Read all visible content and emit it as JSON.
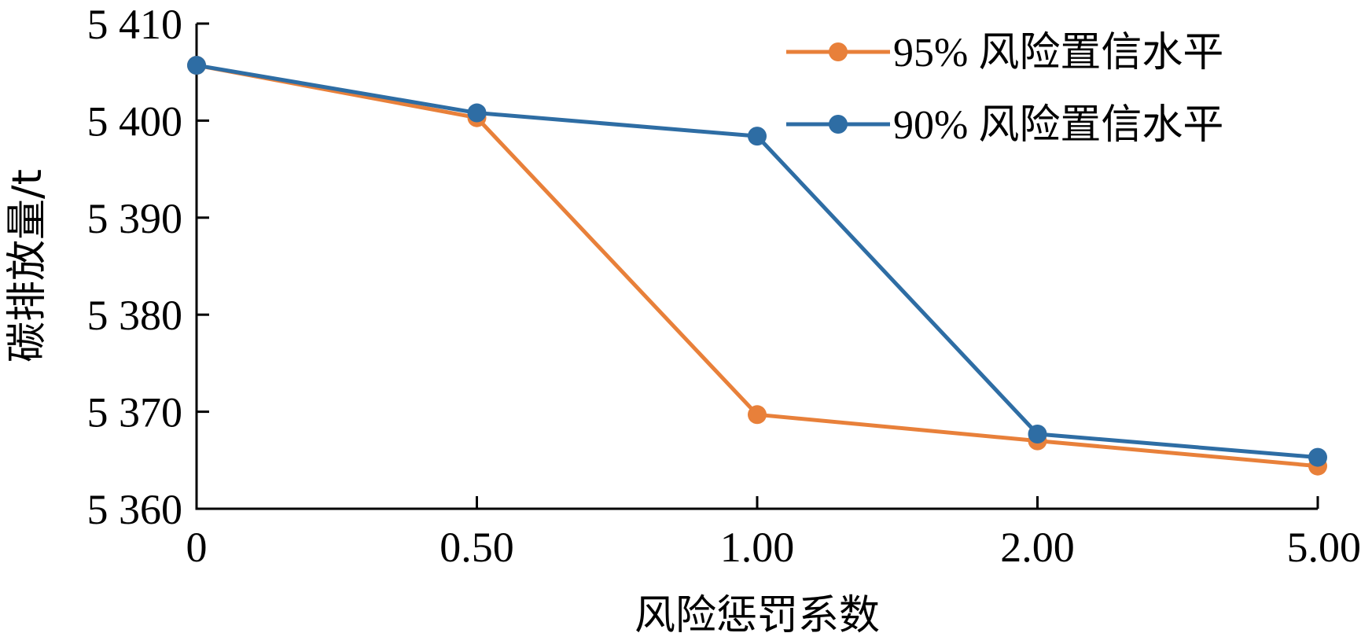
{
  "chart_data": {
    "type": "line",
    "categories": [
      "0",
      "0.50",
      "1.00",
      "2.00",
      "5.00"
    ],
    "series": [
      {
        "name": "95% 风险置信水平",
        "color": "#E8803A",
        "values": [
          5405.7,
          5400.3,
          5369.7,
          5367.0,
          5364.4
        ]
      },
      {
        "name": "90% 风险置信水平",
        "color": "#2E6DA4",
        "values": [
          5405.7,
          5400.8,
          5398.4,
          5367.7,
          5365.3
        ]
      }
    ],
    "yticks": [
      5360,
      5370,
      5380,
      5390,
      5400,
      5410
    ],
    "ytick_labels": [
      "5 360",
      "5 370",
      "5 380",
      "5 390",
      "5 400",
      "5 410"
    ],
    "ylim": [
      5360,
      5410
    ],
    "xlabel": "风险惩罚系数",
    "ylabel": "碳排放量/t",
    "legend": "top-right",
    "grid": false
  }
}
